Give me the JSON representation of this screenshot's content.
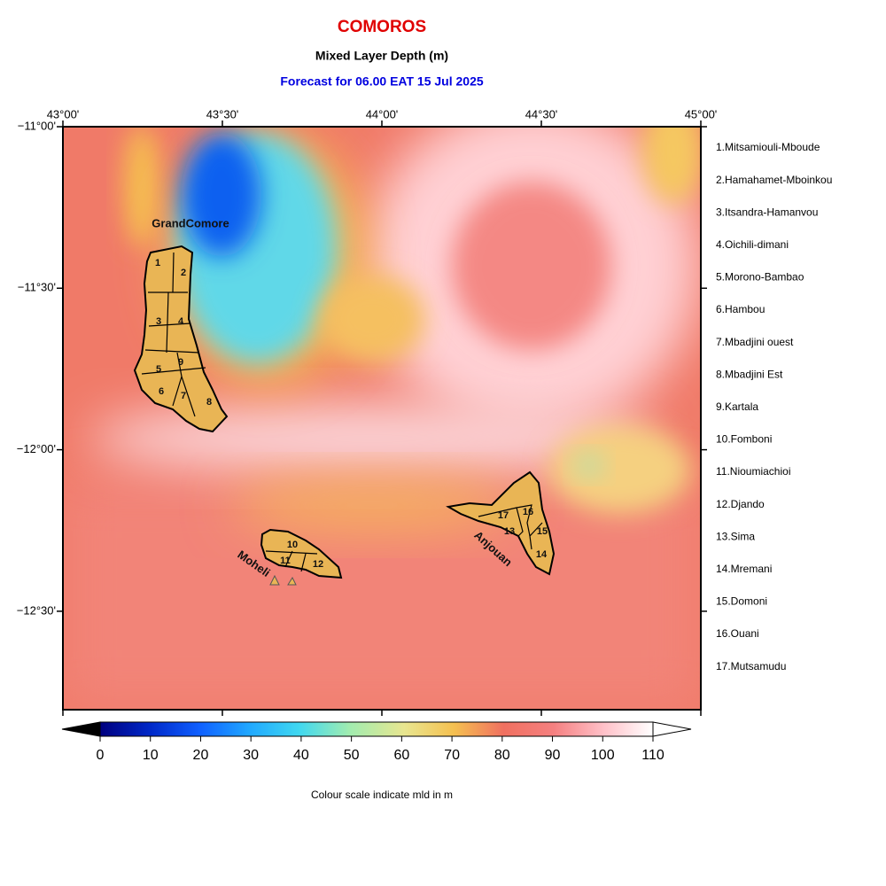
{
  "header": {
    "title": "COMOROS",
    "subtitle": "Mixed Layer Depth (m)",
    "forecast": "Forecast for  06.00 EAT 15 Jul 2025"
  },
  "map": {
    "lon_labels": [
      "43°00'",
      "43°30'",
      "44°00'",
      "44°30'",
      "45°00'"
    ],
    "lat_labels": [
      "−11°00'",
      "−11°30'",
      "−12°00'",
      "−12°30'"
    ],
    "islands": [
      "GrandComore",
      "Moheli",
      "Anjouan"
    ],
    "region_numbers": [
      "1",
      "2",
      "3",
      "4",
      "5",
      "6",
      "7",
      "8",
      "9",
      "10",
      "11",
      "12",
      "13",
      "14",
      "15",
      "16",
      "17"
    ]
  },
  "legend": [
    "1.Mitsamiouli-Mboude",
    "2.Hamahamet-Mboinkou",
    "3.Itsandra-Hamanvou",
    "4.Oichili-dimani",
    "5.Morono-Bambao",
    "6.Hambou",
    "7.Mbadjini ouest",
    "8.Mbadjini Est",
    "9.Kartala",
    "10.Fomboni",
    "11.Nioumiachioi",
    "12.Djando",
    "13.Sima",
    "14.Mremani",
    "15.Domoni",
    "16.Ouani",
    "17.Mutsamudu"
  ],
  "colorbar": {
    "range": [
      0,
      110
    ],
    "ticks": [
      0,
      10,
      20,
      30,
      40,
      50,
      60,
      70,
      80,
      90,
      100,
      110
    ],
    "caption": "Colour scale indicate mld in m"
  }
}
